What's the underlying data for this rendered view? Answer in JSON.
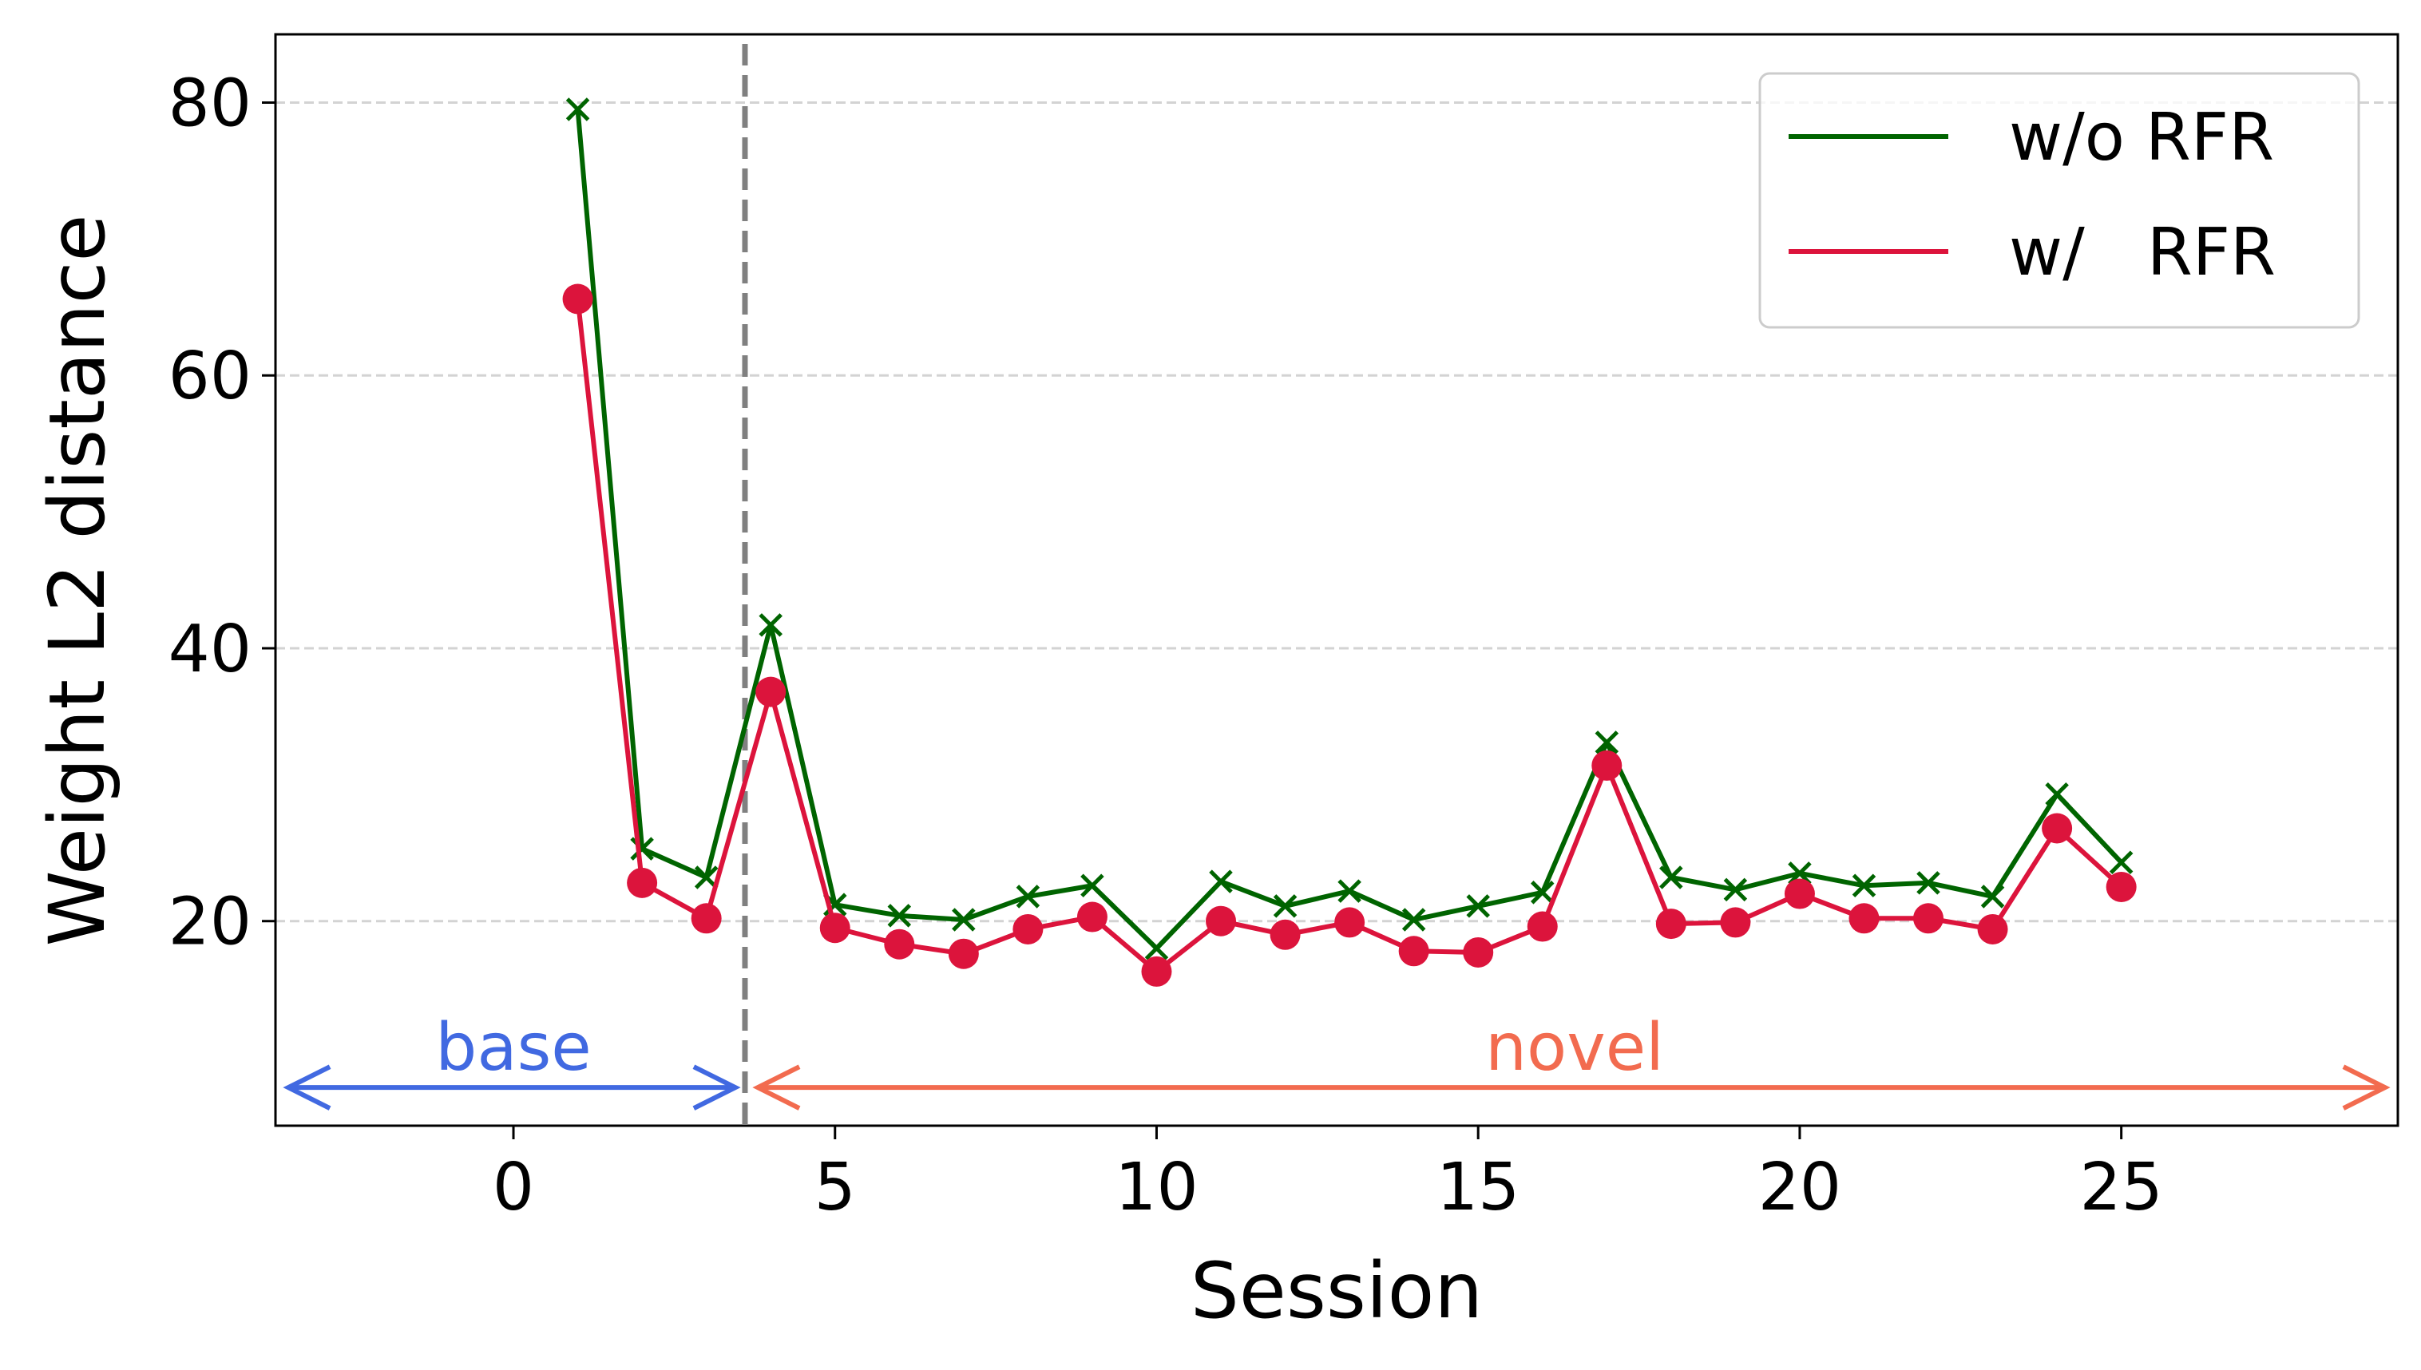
{
  "chart_data": {
    "type": "line",
    "title": "",
    "xlabel": "Session",
    "ylabel": "Weight L2 distance",
    "xlim": [
      -3.7,
      29.3
    ],
    "ylim": [
      5,
      85
    ],
    "xticks": [
      0,
      5,
      10,
      15,
      20,
      25
    ],
    "yticks": [
      20,
      40,
      60,
      80
    ],
    "grid": "y-dashed",
    "legend_position": "top-right",
    "divider_x": 3.6,
    "regions": [
      {
        "label": "base",
        "from": -3.5,
        "to": 3.45,
        "y": 7.8,
        "label_x": 0,
        "label_y": 10.8,
        "color": "#4169e1"
      },
      {
        "label": "novel",
        "from": 3.8,
        "to": 29.1,
        "y": 7.8,
        "label_x": 16.5,
        "label_y": 10.8,
        "color": "#f26b4f"
      }
    ],
    "x": [
      1,
      2,
      3,
      4,
      5,
      6,
      7,
      8,
      9,
      10,
      11,
      12,
      13,
      14,
      15,
      16,
      17,
      18,
      19,
      20,
      21,
      22,
      23,
      24,
      25
    ],
    "series": [
      {
        "name": "w/o RFR",
        "color": "#006400",
        "marker": "x",
        "values": [
          79.5,
          25.3,
          23.2,
          41.7,
          21.2,
          20.4,
          20.1,
          21.8,
          22.6,
          18.0,
          22.9,
          21.1,
          22.2,
          20.1,
          21.1,
          22.1,
          33.1,
          23.2,
          22.3,
          23.5,
          22.6,
          22.8,
          21.8,
          29.3,
          24.3
        ]
      },
      {
        "name": "w/   RFR",
        "color": "#dc143c",
        "marker": "o",
        "values": [
          65.6,
          22.8,
          20.2,
          36.8,
          19.5,
          18.3,
          17.6,
          19.4,
          20.3,
          16.3,
          20.0,
          19.0,
          19.9,
          17.8,
          17.7,
          19.6,
          31.4,
          19.8,
          19.9,
          22.0,
          20.2,
          20.2,
          19.4,
          26.8,
          22.5
        ]
      }
    ]
  }
}
